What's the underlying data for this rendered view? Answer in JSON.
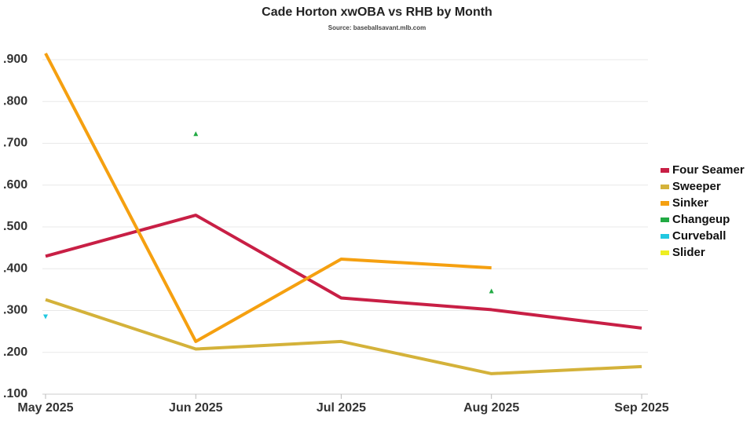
{
  "chart_data": {
    "type": "line",
    "title": "Cade Horton xwOBA vs RHB by Month",
    "subtitle": "Source: baseballsavant.mlb.com",
    "x": [
      "2025-05",
      "2025-06",
      "2025-07",
      "2025-08",
      "2025-09"
    ],
    "xlim": [
      "2025-05",
      "2025-09"
    ],
    "xticks": [
      {
        "value": "2025-05",
        "label": "May 2025"
      },
      {
        "value": "2025-06",
        "label": "Jun 2025"
      },
      {
        "value": "2025-07",
        "label": "Jul 2025"
      },
      {
        "value": "2025-08",
        "label": "Aug 2025"
      },
      {
        "value": "2025-09",
        "label": "Sep 2025"
      }
    ],
    "ylim": [
      0.1,
      0.93
    ],
    "yticks": [
      {
        "value": 0.1,
        "label": ".100"
      },
      {
        "value": 0.2,
        "label": ".200"
      },
      {
        "value": 0.3,
        "label": ".300"
      },
      {
        "value": 0.4,
        "label": ".400"
      },
      {
        "value": 0.5,
        "label": ".500"
      },
      {
        "value": 0.6,
        "label": ".600"
      },
      {
        "value": 0.7,
        "label": ".700"
      },
      {
        "value": 0.8,
        "label": ".800"
      },
      {
        "value": 0.9,
        "label": ".900"
      }
    ],
    "grid": true,
    "legend": "right",
    "series": [
      {
        "name": "Four Seamer",
        "color": "#c81f45",
        "values": [
          0.43,
          0.528,
          0.33,
          0.302,
          0.258
        ]
      },
      {
        "name": "Sweeper",
        "color": "#d4b23a",
        "values": [
          0.326,
          0.208,
          0.226,
          0.149,
          0.166
        ]
      },
      {
        "name": "Sinker",
        "color": "#f5a010",
        "values": [
          0.915,
          0.226,
          0.423,
          0.402,
          null
        ]
      },
      {
        "name": "Changeup",
        "color": "#22aa44",
        "marker": "triangle-up",
        "values": [
          null,
          0.723,
          null,
          0.347,
          null
        ]
      },
      {
        "name": "Curveball",
        "color": "#22c8e0",
        "marker": "triangle-down",
        "values": [
          0.285,
          null,
          null,
          null,
          null
        ]
      },
      {
        "name": "Slider",
        "color": "#eeee22",
        "values": [
          null,
          null,
          null,
          null,
          null
        ]
      }
    ]
  }
}
